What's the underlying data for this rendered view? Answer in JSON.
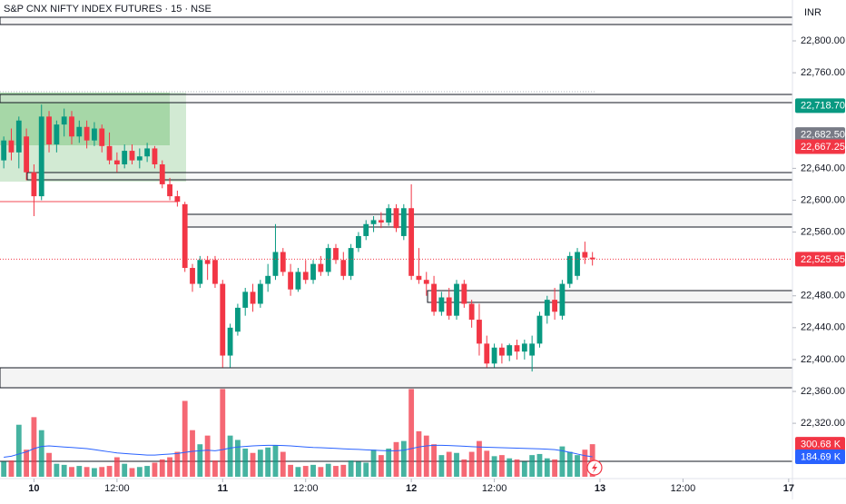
{
  "chart_data": {
    "type": "candlestick",
    "title": "S&P CNX NIFTY INDEX FUTURES · 15 · NSE",
    "currency": "INR",
    "up_color": "#089981",
    "down_color": "#f23645",
    "ma_color": "#2962ff",
    "xlim": [
      -0.5,
      104.5
    ],
    "xticks": [
      {
        "value": 4,
        "label": "10"
      },
      {
        "value": 15,
        "label": "12:00"
      },
      {
        "value": 29,
        "label": "11"
      },
      {
        "value": 40,
        "label": "12:00"
      },
      {
        "value": 54,
        "label": "12"
      },
      {
        "value": 65,
        "label": "12:00"
      },
      {
        "value": 79,
        "label": "13"
      },
      {
        "value": 90,
        "label": "12:00"
      },
      {
        "value": 104,
        "label": "17"
      }
    ],
    "ylim": [
      22250.6,
      22851.3
    ],
    "yticks": [
      {
        "value": 22320,
        "label": "22,320.00"
      },
      {
        "value": 22360,
        "label": "22,360.00"
      },
      {
        "value": 22400,
        "label": "22,400.00"
      },
      {
        "value": 22440,
        "label": "22,440.00"
      },
      {
        "value": 22480,
        "label": "22,480.00"
      },
      {
        "value": 22560,
        "label": "22,560.00"
      },
      {
        "value": 22600,
        "label": "22,600.00"
      },
      {
        "value": 22640,
        "label": "22,640.00"
      },
      {
        "value": 22760,
        "label": "22,760.00"
      },
      {
        "value": 22800,
        "label": "22,800.00"
      }
    ],
    "volume_ylim": [
      0,
      4400000
    ],
    "open": [
      22650,
      22675,
      22660,
      22680,
      22635,
      22605,
      22705,
      22670,
      22695,
      22705,
      22680,
      22692,
      22675,
      22690,
      22668,
      22650,
      22645,
      22662,
      22650,
      22655,
      22665,
      22645,
      22620,
      22605,
      22595,
      22515,
      22495,
      22525,
      22525,
      22495,
      22405,
      22435,
      22465,
      22485,
      22470,
      22495,
      22505,
      22535,
      22510,
      22488,
      22510,
      22500,
      22520,
      22510,
      22540,
      22525,
      22505,
      22540,
      22555,
      22570,
      22575,
      22572,
      22590,
      22555,
      22590,
      22505,
      22500,
      22495,
      22460,
      22478,
      22455,
      22495,
      22470,
      22450,
      22420,
      22395,
      22415,
      22405,
      22418,
      22410,
      22405,
      22420,
      22455,
      22475,
      22455,
      22495,
      22505,
      22535,
      22528
    ],
    "high": [
      22680,
      22690,
      22705,
      22690,
      22645,
      22720,
      22712,
      22700,
      22715,
      22712,
      22700,
      22700,
      22698,
      22695,
      22685,
      22660,
      22670,
      22670,
      22665,
      22672,
      22668,
      22650,
      22628,
      22612,
      22598,
      22520,
      22530,
      22530,
      22530,
      22500,
      22445,
      22470,
      22490,
      22495,
      22500,
      22520,
      22570,
      22540,
      22520,
      22515,
      22525,
      22525,
      22530,
      22545,
      22545,
      22535,
      22545,
      22560,
      22575,
      22580,
      22585,
      22595,
      22595,
      22595,
      22620,
      22540,
      22510,
      22505,
      22485,
      22490,
      22500,
      22500,
      22475,
      22470,
      22430,
      22420,
      22420,
      22420,
      22425,
      22425,
      22430,
      22460,
      22480,
      22490,
      22500,
      22535,
      22540,
      22548,
      22535
    ],
    "low": [
      22640,
      22650,
      22640,
      22625,
      22580,
      22600,
      22660,
      22660,
      22680,
      22670,
      22672,
      22665,
      22668,
      22660,
      22645,
      22635,
      22640,
      22645,
      22640,
      22648,
      22640,
      22615,
      22600,
      22592,
      22510,
      22485,
      22490,
      22500,
      22490,
      22390,
      22390,
      22430,
      22455,
      22460,
      22465,
      22485,
      22500,
      22505,
      22480,
      22485,
      22495,
      22495,
      22505,
      22505,
      22520,
      22500,
      22500,
      22535,
      22550,
      22560,
      22565,
      22568,
      22560,
      22550,
      22500,
      22495,
      22480,
      22455,
      22455,
      22450,
      22450,
      22465,
      22440,
      22405,
      22390,
      22390,
      22395,
      22398,
      22400,
      22400,
      22385,
      22415,
      22445,
      22450,
      22450,
      22490,
      22500,
      22520,
      22518
    ],
    "close": [
      22675,
      22660,
      22700,
      22635,
      22605,
      22705,
      22670,
      22695,
      22705,
      22680,
      22692,
      22675,
      22690,
      22668,
      22650,
      22645,
      22662,
      22650,
      22655,
      22665,
      22645,
      22620,
      22605,
      22598,
      22515,
      22495,
      22525,
      22520,
      22495,
      22405,
      22440,
      22465,
      22485,
      22470,
      22495,
      22505,
      22535,
      22510,
      22488,
      22510,
      22500,
      22520,
      22510,
      22540,
      22525,
      22505,
      22540,
      22555,
      22570,
      22575,
      22572,
      22590,
      22565,
      22590,
      22505,
      22500,
      22495,
      22460,
      22478,
      22455,
      22495,
      22470,
      22450,
      22420,
      22395,
      22415,
      22405,
      22418,
      22410,
      22420,
      22420,
      22455,
      22475,
      22460,
      22495,
      22530,
      22535,
      22528,
      22525.95
    ],
    "volume": [
      140000,
      150000,
      480000,
      250000,
      550000,
      430000,
      220000,
      120000,
      110000,
      90000,
      100000,
      90000,
      80000,
      90000,
      100000,
      180000,
      120000,
      80000,
      90000,
      100000,
      130000,
      160000,
      180000,
      230000,
      700000,
      430000,
      300000,
      380000,
      150000,
      810000,
      380000,
      340000,
      260000,
      220000,
      250000,
      270000,
      290000,
      230000,
      110000,
      90000,
      100000,
      110000,
      90000,
      120000,
      100000,
      110000,
      150000,
      140000,
      130000,
      250000,
      200000,
      260000,
      320000,
      330000,
      810000,
      420000,
      380000,
      300000,
      200000,
      230000,
      220000,
      160000,
      230000,
      330000,
      240000,
      190000,
      200000,
      170000,
      160000,
      140000,
      200000,
      210000,
      170000,
      160000,
      280000,
      230000,
      200000,
      250000,
      300680
    ],
    "volume_ma": [
      180000,
      190000,
      210000,
      230000,
      260000,
      280000,
      285000,
      280000,
      275000,
      270000,
      265000,
      260000,
      250000,
      240000,
      230000,
      220000,
      215000,
      210000,
      205000,
      200000,
      200000,
      205000,
      210000,
      215000,
      225000,
      235000,
      240000,
      245000,
      240000,
      250000,
      265000,
      275000,
      280000,
      285000,
      288000,
      290000,
      290000,
      288000,
      285000,
      280000,
      275000,
      270000,
      268000,
      265000,
      262000,
      258000,
      255000,
      252000,
      248000,
      245000,
      242000,
      240000,
      240000,
      245000,
      260000,
      275000,
      285000,
      290000,
      290000,
      288000,
      285000,
      282000,
      278000,
      275000,
      272000,
      270000,
      268000,
      266000,
      264000,
      262000,
      260000,
      258000,
      255000,
      250000,
      240000,
      225000,
      210000,
      195000,
      184690
    ],
    "last_price": {
      "value": 22525.95,
      "label": "22,525.95"
    },
    "price_labels": [
      {
        "value": 22718.7,
        "label": "22,718.70",
        "color": "#089981"
      },
      {
        "value": 22682.5,
        "label": "22,682.50",
        "color": "#787b86"
      },
      {
        "value": 22667.25,
        "label": "22,667.25",
        "color": "#f23645"
      }
    ],
    "volume_labels": [
      {
        "value": 300680,
        "label": "300.68 K",
        "color": "#f23645"
      },
      {
        "value": 184690,
        "label": "184.69 K",
        "color": "#2962ff"
      }
    ]
  }
}
